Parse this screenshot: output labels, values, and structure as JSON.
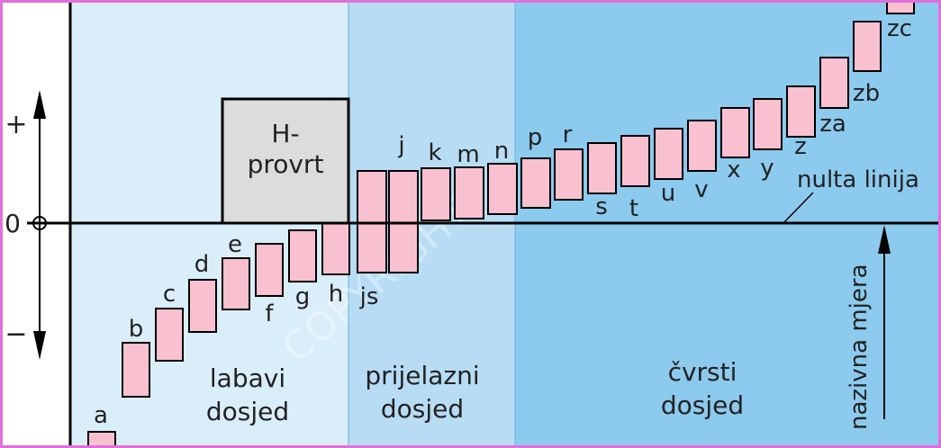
{
  "zones": [
    {
      "id": "labavi",
      "line1": "labavi",
      "line2": "dosjed",
      "color": "#daeefa"
    },
    {
      "id": "prijelazni",
      "line1": "prijelazni",
      "line2": "dosjed",
      "color": "#b7dcf4"
    },
    {
      "id": "cvrsti",
      "line1": "čvrsti",
      "line2": "dosjed",
      "color": "#8ccaee"
    }
  ],
  "hole": {
    "line1": "H-",
    "line2": "provrt"
  },
  "axis": {
    "plus": "+",
    "minus": "−",
    "zero": "0"
  },
  "zero_line_label": "nulta linija",
  "nominal_label": "nazivna mjera",
  "watermark": "COPYRIGHT",
  "fields": [
    {
      "name": "a"
    },
    {
      "name": "b"
    },
    {
      "name": "c"
    },
    {
      "name": "d"
    },
    {
      "name": "e"
    },
    {
      "name": "f"
    },
    {
      "name": "g"
    },
    {
      "name": "h"
    },
    {
      "name": "js"
    },
    {
      "name": "j"
    },
    {
      "name": "k"
    },
    {
      "name": "m"
    },
    {
      "name": "n"
    },
    {
      "name": "p"
    },
    {
      "name": "r"
    },
    {
      "name": "s"
    },
    {
      "name": "t"
    },
    {
      "name": "u"
    },
    {
      "name": "v"
    },
    {
      "name": "x"
    },
    {
      "name": "y"
    },
    {
      "name": "z"
    },
    {
      "name": "za"
    },
    {
      "name": "zb"
    },
    {
      "name": "zc"
    }
  ],
  "colors": {
    "field_fill": "#f9c1cf",
    "hole_fill": "#dcdcdc",
    "frame": "#e070dc"
  }
}
